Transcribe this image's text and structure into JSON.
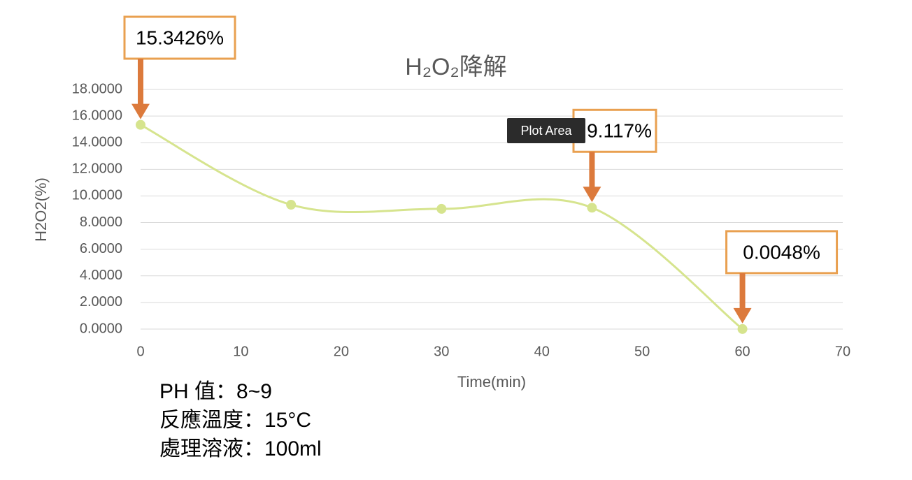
{
  "chart_data": {
    "type": "line",
    "title": "H₂O₂降解",
    "x": [
      0,
      15,
      30,
      45,
      60
    ],
    "values": [
      15.3426,
      9.34,
      9.03,
      9.117,
      0.0048
    ],
    "value_labels": [
      "15.3426%",
      null,
      null,
      "9.117%",
      "0.0048%"
    ],
    "color": "#d6e48e",
    "annotation_color": "#dc7a3c",
    "smooth": true,
    "grid": true,
    "xlim": [
      0,
      70
    ],
    "xticks": [
      0,
      10,
      20,
      30,
      40,
      50,
      60,
      70
    ],
    "ylim": [
      0,
      18
    ],
    "yticks": [
      {
        "value": 0,
        "label": "0.0000"
      },
      {
        "value": 2,
        "label": "2.0000"
      },
      {
        "value": 4,
        "label": "4.0000"
      },
      {
        "value": 6,
        "label": "6.0000"
      },
      {
        "value": 8,
        "label": "8.0000"
      },
      {
        "value": 10,
        "label": "10.0000"
      },
      {
        "value": 12,
        "label": "12.0000"
      },
      {
        "value": 14,
        "label": "14.0000"
      },
      {
        "value": 16,
        "label": "16.0000"
      },
      {
        "value": 18,
        "label": "18.0000"
      }
    ],
    "xlabel": "Time(min)",
    "ylabel": "H2O2(%)",
    "notes": [
      "PH 值：8~9",
      "反應溫度：15°C",
      "處理溶液：100ml"
    ],
    "tooltip": "Plot Area"
  }
}
